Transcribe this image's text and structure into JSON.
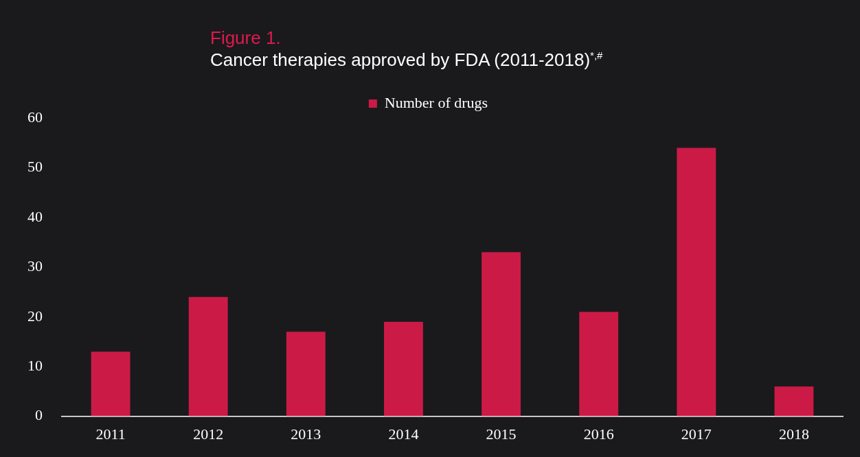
{
  "chart_data": {
    "type": "bar",
    "title": "Figure 1.",
    "subtitle": "Cancer therapies approved by FDA  (2011-2018)$^{*,#}$",
    "categories": [
      "2011",
      "2012",
      "2013",
      "2014",
      "2015",
      "2016",
      "2017",
      "2018"
    ],
    "series": [
      {
        "name": "Number of drugs",
        "color": "#cc1a46",
        "values": [
          13,
          24,
          17,
          19,
          33,
          21,
          54,
          6
        ]
      }
    ],
    "ylim": [
      0,
      60
    ],
    "yticks": [
      0,
      10,
      20,
      30,
      40,
      50,
      60
    ],
    "grid": false,
    "legend": "top"
  }
}
